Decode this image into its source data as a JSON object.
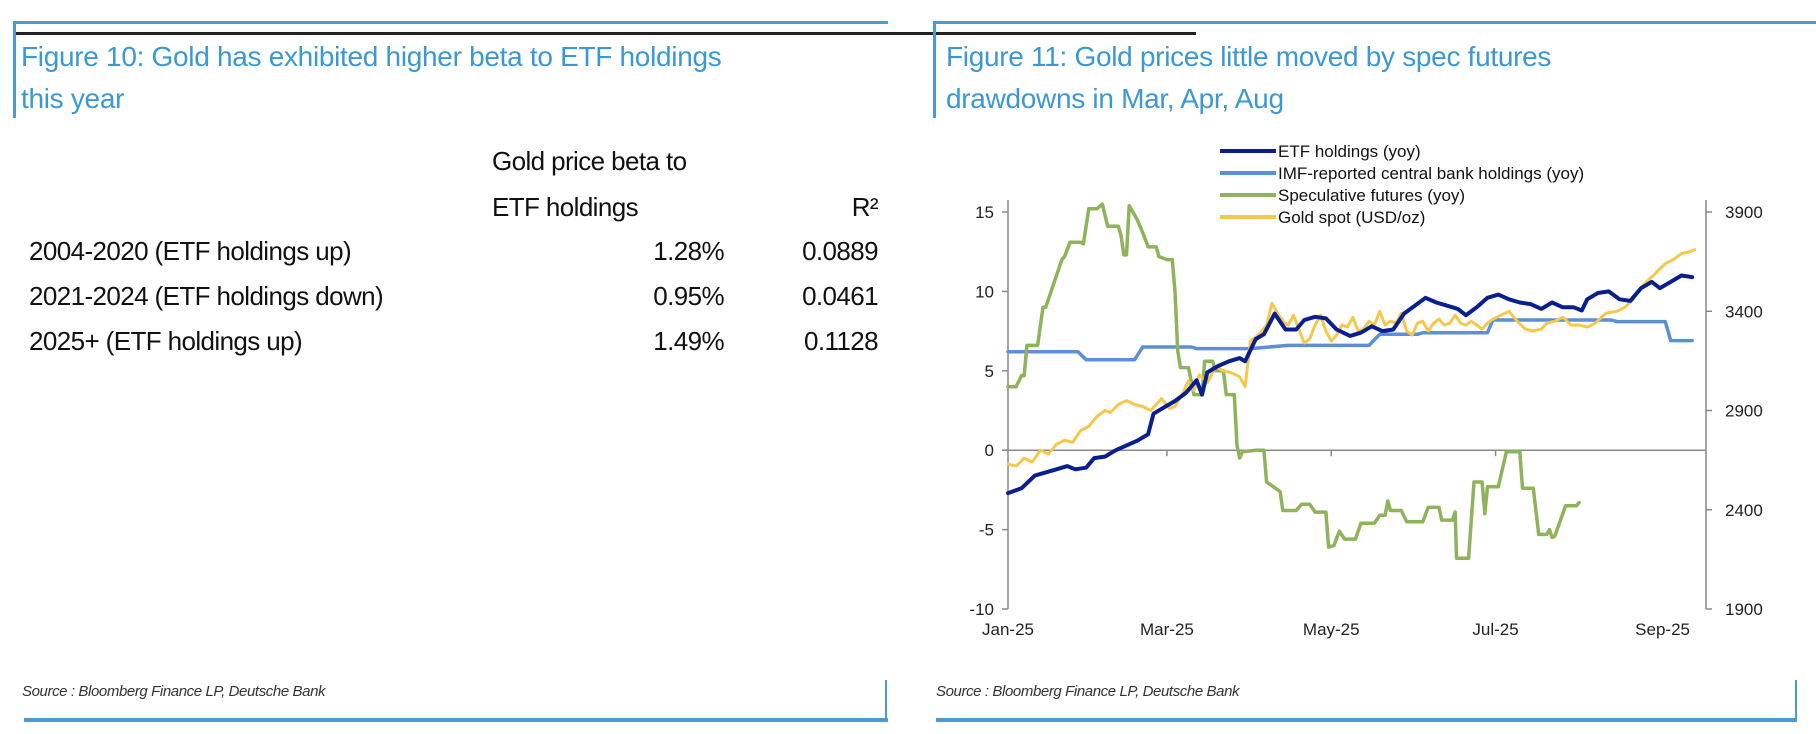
{
  "figure10": {
    "title_line1": "Figure 10: Gold has exhibited higher beta to ETF holdings",
    "title_line2": "this year",
    "table": {
      "header_beta_line1": "Gold price beta to",
      "header_beta_line2": "ETF holdings",
      "header_r2": "R²",
      "rows": [
        {
          "period": "2004-2020 (ETF holdings up)",
          "beta": "1.28%",
          "r2": "0.0889"
        },
        {
          "period": "2021-2024 (ETF holdings down)",
          "beta": "0.95%",
          "r2": "0.0461"
        },
        {
          "period": "2025+ (ETF holdings up)",
          "beta": "1.49%",
          "r2": "0.1128"
        }
      ]
    },
    "source": "Source : Bloomberg Finance LP, Deutsche Bank"
  },
  "figure11": {
    "title_line1": "Figure 11: Gold prices little moved by spec futures",
    "title_line2": "drawdowns in Mar, Apr, Aug",
    "source": "Source : Bloomberg Finance LP, Deutsche Bank"
  },
  "colors": {
    "accent": "#4a9ad6",
    "title": "#3a98d3",
    "etf": "#0a1f8f",
    "imf": "#5b8fd6",
    "spec": "#8fb35a",
    "gold": "#f5c84c",
    "axis": "#888888"
  },
  "chart_data": {
    "type": "line",
    "title": "Figure 11: Gold prices little moved by spec futures drawdowns in Mar, Apr, Aug",
    "xlabel": "",
    "ylabel_left": "",
    "ylabel_right": "",
    "x_ticks": [
      "Jan-25",
      "Mar-25",
      "May-25",
      "Jul-25",
      "Sep-25"
    ],
    "x_tick_days": [
      0,
      59,
      120,
      181,
      243
    ],
    "x_range_days": [
      0,
      258
    ],
    "y_left_range": [
      -10,
      15
    ],
    "y_left_ticks": [
      -10,
      -5,
      0,
      5,
      10,
      15
    ],
    "y_right_range": [
      1900,
      3900
    ],
    "y_right_ticks": [
      1900,
      2400,
      2900,
      3400,
      3900
    ],
    "grid": false,
    "legend_position": "top-center",
    "series": [
      {
        "name": "ETF holdings (yoy)",
        "axis": "left",
        "color_key": "etf",
        "points": [
          [
            0,
            -2.7
          ],
          [
            5,
            -2.4
          ],
          [
            10,
            -1.6
          ],
          [
            14,
            -1.4
          ],
          [
            18,
            -1.2
          ],
          [
            22,
            -1.0
          ],
          [
            25,
            -1.2
          ],
          [
            29,
            -1.1
          ],
          [
            32,
            -0.5
          ],
          [
            36,
            -0.4
          ],
          [
            40,
            0.0
          ],
          [
            44,
            0.3
          ],
          [
            48,
            0.6
          ],
          [
            52,
            1.0
          ],
          [
            54,
            2.3
          ],
          [
            58,
            2.7
          ],
          [
            62,
            3.1
          ],
          [
            66,
            3.6
          ],
          [
            70,
            4.4
          ],
          [
            72,
            3.5
          ],
          [
            74,
            4.9
          ],
          [
            78,
            5.3
          ],
          [
            82,
            5.6
          ],
          [
            86,
            5.8
          ],
          [
            88,
            5.6
          ],
          [
            92,
            7.0
          ],
          [
            95,
            7.3
          ],
          [
            99,
            8.6
          ],
          [
            103,
            7.6
          ],
          [
            107,
            7.6
          ],
          [
            110,
            8.2
          ],
          [
            114,
            8.4
          ],
          [
            118,
            8.3
          ],
          [
            122,
            7.6
          ],
          [
            127,
            7.2
          ],
          [
            131,
            7.4
          ],
          [
            135,
            7.8
          ],
          [
            139,
            7.5
          ],
          [
            143,
            7.6
          ],
          [
            147,
            8.6
          ],
          [
            151,
            9.1
          ],
          [
            155,
            9.6
          ],
          [
            159,
            9.3
          ],
          [
            163,
            9.1
          ],
          [
            167,
            8.9
          ],
          [
            170,
            8.5
          ],
          [
            174,
            9.0
          ],
          [
            178,
            9.6
          ],
          [
            182,
            9.8
          ],
          [
            186,
            9.5
          ],
          [
            190,
            9.3
          ],
          [
            194,
            9.2
          ],
          [
            198,
            8.9
          ],
          [
            202,
            9.3
          ],
          [
            206,
            9.0
          ],
          [
            210,
            9.0
          ],
          [
            213,
            8.8
          ],
          [
            215,
            9.5
          ],
          [
            219,
            9.9
          ],
          [
            223,
            10.0
          ],
          [
            227,
            9.5
          ],
          [
            231,
            9.4
          ],
          [
            235,
            10.2
          ],
          [
            239,
            10.6
          ],
          [
            242,
            10.2
          ],
          [
            246,
            10.6
          ],
          [
            250,
            11.0
          ],
          [
            254,
            10.9
          ]
        ]
      },
      {
        "name": "IMF-reported central bank holdings (yoy)",
        "axis": "left",
        "color_key": "imf",
        "points": [
          [
            0,
            6.2
          ],
          [
            26,
            6.2
          ],
          [
            29,
            5.7
          ],
          [
            47,
            5.7
          ],
          [
            50,
            6.5
          ],
          [
            68,
            6.5
          ],
          [
            70,
            6.4
          ],
          [
            90,
            6.4
          ],
          [
            104,
            6.6
          ],
          [
            134,
            6.6
          ],
          [
            138,
            7.3
          ],
          [
            152,
            7.3
          ],
          [
            154,
            7.4
          ],
          [
            178,
            7.4
          ],
          [
            180,
            8.2
          ],
          [
            224,
            8.2
          ],
          [
            226,
            8.1
          ],
          [
            244,
            8.1
          ],
          [
            246,
            6.9
          ],
          [
            254,
            6.9
          ]
        ]
      },
      {
        "name": "Speculative futures (yoy)",
        "axis": "left",
        "color_key": "spec",
        "points": [
          [
            0,
            4.0
          ],
          [
            3,
            4.0
          ],
          [
            5,
            4.7
          ],
          [
            6,
            4.7
          ],
          [
            7,
            6.6
          ],
          [
            11,
            6.6
          ],
          [
            13,
            9.0
          ],
          [
            14,
            9.0
          ],
          [
            16,
            10.0
          ],
          [
            18,
            11.0
          ],
          [
            20,
            12.0
          ],
          [
            21,
            12.2
          ],
          [
            23,
            13.1
          ],
          [
            27,
            13.1
          ],
          [
            28,
            13.0
          ],
          [
            30,
            15.2
          ],
          [
            33,
            15.2
          ],
          [
            35,
            15.5
          ],
          [
            37,
            14.1
          ],
          [
            41,
            14.1
          ],
          [
            42,
            13.5
          ],
          [
            43,
            12.3
          ],
          [
            44,
            12.3
          ],
          [
            45,
            15.4
          ],
          [
            48,
            14.5
          ],
          [
            50,
            13.7
          ],
          [
            52,
            12.8
          ],
          [
            55,
            12.8
          ],
          [
            56,
            12.2
          ],
          [
            59,
            12.0
          ],
          [
            61,
            12.0
          ],
          [
            62,
            10.0
          ],
          [
            63,
            6.3
          ],
          [
            64,
            5.2
          ],
          [
            67,
            5.2
          ],
          [
            69,
            3.5
          ],
          [
            72,
            3.5
          ],
          [
            73,
            5.6
          ],
          [
            76,
            5.6
          ],
          [
            77,
            5.0
          ],
          [
            80,
            5.0
          ],
          [
            81,
            3.5
          ],
          [
            84,
            3.5
          ],
          [
            85,
            0.3
          ],
          [
            86,
            -0.5
          ],
          [
            87,
            -0.1
          ],
          [
            92,
            0.0
          ],
          [
            95,
            0.0
          ],
          [
            96,
            -2.0
          ],
          [
            101,
            -2.6
          ],
          [
            102,
            -3.8
          ],
          [
            107,
            -3.8
          ],
          [
            109,
            -3.4
          ],
          [
            112,
            -3.4
          ],
          [
            114,
            -3.9
          ],
          [
            118,
            -3.9
          ],
          [
            119,
            -6.1
          ],
          [
            121,
            -6.0
          ],
          [
            123,
            -5.1
          ],
          [
            125,
            -5.6
          ],
          [
            129,
            -5.6
          ],
          [
            131,
            -4.6
          ],
          [
            136,
            -4.6
          ],
          [
            138,
            -4.1
          ],
          [
            140,
            -4.1
          ],
          [
            141,
            -3.2
          ],
          [
            142,
            -3.8
          ],
          [
            146,
            -3.8
          ],
          [
            148,
            -4.5
          ],
          [
            154,
            -4.5
          ],
          [
            156,
            -3.6
          ],
          [
            160,
            -3.6
          ],
          [
            161,
            -4.4
          ],
          [
            165,
            -4.4
          ],
          [
            166,
            -3.9
          ],
          [
            166.5,
            -6.8
          ],
          [
            171,
            -6.8
          ],
          [
            173,
            -2.0
          ],
          [
            176,
            -2.0
          ],
          [
            177,
            -4.0
          ],
          [
            178,
            -2.3
          ],
          [
            182,
            -2.3
          ],
          [
            185,
            -0.1
          ],
          [
            190,
            -0.1
          ],
          [
            191,
            -2.4
          ],
          [
            195,
            -2.4
          ],
          [
            197,
            -5.3
          ],
          [
            200,
            -5.3
          ],
          [
            201,
            -5.0
          ],
          [
            202,
            -5.5
          ],
          [
            203,
            -5.4
          ],
          [
            207,
            -3.5
          ],
          [
            211,
            -3.5
          ],
          [
            212,
            -3.3
          ]
        ]
      },
      {
        "name": "Gold spot (USD/oz)",
        "axis": "right",
        "color_key": "gold",
        "points": [
          [
            0,
            2630
          ],
          [
            3,
            2620
          ],
          [
            6,
            2660
          ],
          [
            9,
            2640
          ],
          [
            12,
            2700
          ],
          [
            15,
            2680
          ],
          [
            18,
            2730
          ],
          [
            21,
            2750
          ],
          [
            24,
            2740
          ],
          [
            27,
            2800
          ],
          [
            30,
            2820
          ],
          [
            33,
            2870
          ],
          [
            36,
            2900
          ],
          [
            38,
            2890
          ],
          [
            41,
            2930
          ],
          [
            44,
            2950
          ],
          [
            47,
            2930
          ],
          [
            50,
            2920
          ],
          [
            53,
            2900
          ],
          [
            55,
            2930
          ],
          [
            57,
            2960
          ],
          [
            60,
            2910
          ],
          [
            62,
            2920
          ],
          [
            65,
            2990
          ],
          [
            67,
            3050
          ],
          [
            69,
            3000
          ],
          [
            71,
            3080
          ],
          [
            74,
            3040
          ],
          [
            77,
            3120
          ],
          [
            80,
            3100
          ],
          [
            83,
            3090
          ],
          [
            86,
            3070
          ],
          [
            88,
            3020
          ],
          [
            90,
            3250
          ],
          [
            93,
            3280
          ],
          [
            96,
            3330
          ],
          [
            98,
            3440
          ],
          [
            100,
            3390
          ],
          [
            102,
            3350
          ],
          [
            104,
            3330
          ],
          [
            106,
            3380
          ],
          [
            108,
            3310
          ],
          [
            110,
            3240
          ],
          [
            112,
            3260
          ],
          [
            114,
            3330
          ],
          [
            116,
            3380
          ],
          [
            118,
            3300
          ],
          [
            120,
            3250
          ],
          [
            122,
            3280
          ],
          [
            124,
            3330
          ],
          [
            126,
            3320
          ],
          [
            128,
            3370
          ],
          [
            130,
            3300
          ],
          [
            132,
            3310
          ],
          [
            134,
            3350
          ],
          [
            136,
            3330
          ],
          [
            138,
            3400
          ],
          [
            140,
            3330
          ],
          [
            142,
            3350
          ],
          [
            144,
            3340
          ],
          [
            146,
            3390
          ],
          [
            148,
            3300
          ],
          [
            150,
            3280
          ],
          [
            152,
            3340
          ],
          [
            154,
            3350
          ],
          [
            156,
            3300
          ],
          [
            158,
            3340
          ],
          [
            160,
            3360
          ],
          [
            162,
            3330
          ],
          [
            164,
            3340
          ],
          [
            166,
            3380
          ],
          [
            168,
            3340
          ],
          [
            170,
            3330
          ],
          [
            172,
            3350
          ],
          [
            174,
            3330
          ],
          [
            176,
            3310
          ],
          [
            178,
            3340
          ],
          [
            180,
            3360
          ],
          [
            183,
            3380
          ],
          [
            186,
            3400
          ],
          [
            189,
            3350
          ],
          [
            192,
            3310
          ],
          [
            195,
            3300
          ],
          [
            198,
            3310
          ],
          [
            200,
            3340
          ],
          [
            203,
            3350
          ],
          [
            206,
            3370
          ],
          [
            209,
            3330
          ],
          [
            212,
            3330
          ],
          [
            215,
            3320
          ],
          [
            218,
            3340
          ],
          [
            222,
            3390
          ],
          [
            226,
            3400
          ],
          [
            229,
            3420
          ],
          [
            232,
            3460
          ],
          [
            235,
            3520
          ],
          [
            238,
            3560
          ],
          [
            241,
            3600
          ],
          [
            244,
            3640
          ],
          [
            247,
            3660
          ],
          [
            250,
            3690
          ],
          [
            253,
            3700
          ],
          [
            255,
            3710
          ]
        ]
      }
    ]
  }
}
